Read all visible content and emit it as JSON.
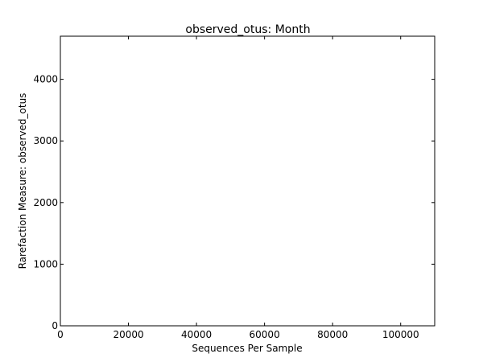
{
  "chart_data": {
    "type": "line",
    "title": "observed_otus: Month",
    "xlabel": "Sequences Per Sample",
    "ylabel": "Rarefaction Measure: observed_otus",
    "xlim": [
      0,
      110000
    ],
    "ylim": [
      0,
      4700
    ],
    "xticks": [
      0,
      20000,
      40000,
      60000,
      80000,
      100000
    ],
    "xtick_labels": [
      "0",
      "20000",
      "40000",
      "60000",
      "80000",
      "100000"
    ],
    "yticks": [
      0,
      1000,
      2000,
      3000,
      4000
    ],
    "ytick_labels": [
      "0",
      "1000",
      "2000",
      "3000",
      "4000"
    ],
    "grid": false,
    "series": []
  },
  "colors": {
    "axis": "#000000",
    "background": "#ffffff"
  }
}
